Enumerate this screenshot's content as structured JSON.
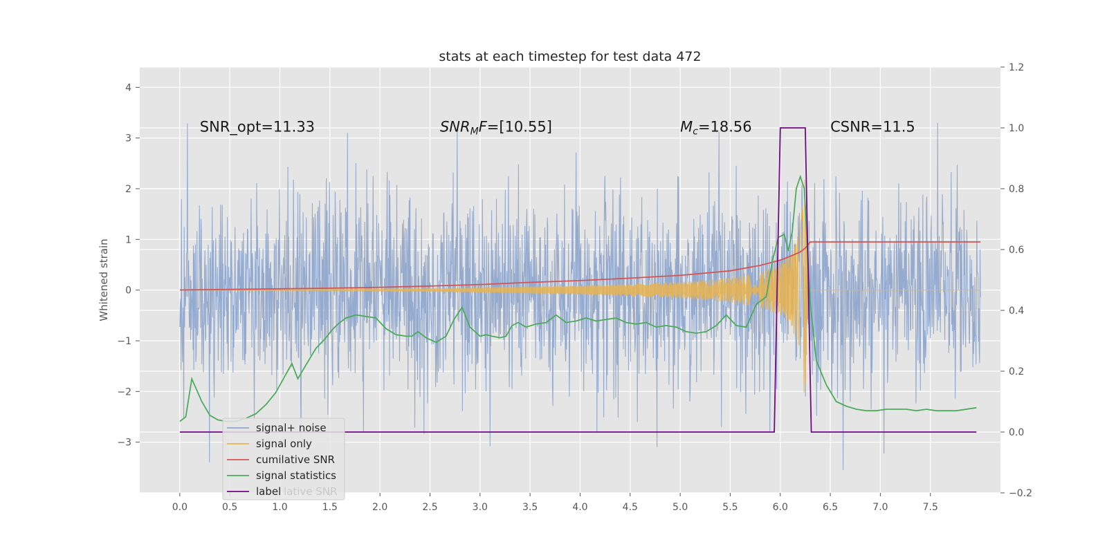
{
  "chart_data": {
    "type": "line",
    "title": "stats at each timestep for test data 472",
    "ylabel": "Whitened strain",
    "xlabel": "",
    "xlim": [
      -0.4,
      8.2
    ],
    "ylim": [
      -4,
      4.4
    ],
    "y2lim": [
      -0.2,
      1.2
    ],
    "grid": true,
    "legend_position": "lower-left",
    "x_ticks": [
      "0.0",
      "0.5",
      "1.0",
      "1.5",
      "2.0",
      "2.5",
      "3.0",
      "3.5",
      "4.0",
      "4.5",
      "5.0",
      "5.5",
      "6.0",
      "6.5",
      "7.0",
      "7.5"
    ],
    "x_tick_values": [
      0,
      0.5,
      1,
      1.5,
      2,
      2.5,
      3,
      3.5,
      4,
      4.5,
      5,
      5.5,
      6,
      6.5,
      7,
      7.5
    ],
    "y_ticks": [
      "4",
      "3",
      "2",
      "1",
      "0",
      "−1",
      "−2",
      "−3"
    ],
    "y_tick_values": [
      4,
      3,
      2,
      1,
      0,
      -1,
      -2,
      -3
    ],
    "y2_ticks": [
      "1.2",
      "1.0",
      "0.8",
      "0.6",
      "0.4",
      "0.2",
      "0.0",
      "−0.2"
    ],
    "y2_tick_values": [
      1.2,
      1.0,
      0.8,
      0.6,
      0.4,
      0.2,
      0.0,
      -0.2
    ],
    "annotations": [
      {
        "text": "SNR_opt=11.33",
        "x": 0.2,
        "y": 3.22
      },
      {
        "text": "SNR_MF=[10.55]",
        "x": 2.6,
        "y": 3.22
      },
      {
        "text": "M_c=18.56",
        "x": 5.0,
        "y": 3.22
      },
      {
        "text": "CSNR=11.5",
        "x": 6.5,
        "y": 3.22
      }
    ],
    "series": [
      {
        "name": "signal+ noise",
        "axis": "left",
        "color": "#8fa6cc",
        "description": "dense noisy strain trace spanning roughly -3.6 to 4.0 over x 0 to 8",
        "x_range": [
          0,
          8
        ],
        "approx_envelope": [
          -3.6,
          4.0
        ]
      },
      {
        "name": "signal only",
        "axis": "left",
        "color": "#e8b450",
        "description": "chirp waveform growing in amplitude, peaking near x=6.25 then dropping to zero",
        "peak_x": 6.25,
        "envelope": [
          [
            2.2,
            0.02
          ],
          [
            3,
            0.05
          ],
          [
            3.5,
            0.07
          ],
          [
            4,
            0.09
          ],
          [
            4.5,
            0.12
          ],
          [
            5,
            0.16
          ],
          [
            5.5,
            0.24
          ],
          [
            5.8,
            0.35
          ],
          [
            6,
            0.5
          ],
          [
            6.1,
            0.7
          ],
          [
            6.2,
            1.2
          ],
          [
            6.25,
            2.3
          ],
          [
            6.28,
            0
          ],
          [
            8,
            0
          ]
        ]
      },
      {
        "name": "cumilative SNR",
        "axis": "right",
        "color": "#d35454",
        "x": [
          0,
          0.5,
          1,
          1.5,
          2,
          2.5,
          3,
          3.5,
          4,
          4.5,
          5,
          5.5,
          5.8,
          6.0,
          6.1,
          6.2,
          6.25,
          6.3,
          7,
          8
        ],
        "y": [
          0.467,
          0.469,
          0.471,
          0.473,
          0.476,
          0.48,
          0.485,
          0.492,
          0.498,
          0.506,
          0.515,
          0.53,
          0.548,
          0.565,
          0.578,
          0.592,
          0.605,
          0.625,
          0.625,
          0.625
        ]
      },
      {
        "name": "signal statistics",
        "axis": "right",
        "color": "#4daa5c",
        "x": [
          0,
          0.06,
          0.12,
          0.16,
          0.22,
          0.3,
          0.38,
          0.46,
          0.56,
          0.66,
          0.76,
          0.86,
          0.96,
          1.06,
          1.12,
          1.18,
          1.26,
          1.36,
          1.46,
          1.52,
          1.58,
          1.66,
          1.76,
          1.86,
          1.96,
          2.06,
          2.16,
          2.26,
          2.32,
          2.38,
          2.46,
          2.56,
          2.66,
          2.74,
          2.82,
          2.9,
          3.0,
          3.06,
          3.12,
          3.2,
          3.26,
          3.32,
          3.38,
          3.46,
          3.56,
          3.66,
          3.76,
          3.86,
          3.96,
          4.06,
          4.16,
          4.26,
          4.36,
          4.46,
          4.56,
          4.66,
          4.76,
          4.86,
          4.96,
          5.06,
          5.16,
          5.26,
          5.36,
          5.46,
          5.56,
          5.66,
          5.76,
          5.86,
          5.92,
          5.98,
          6.04,
          6.08,
          6.12,
          6.16,
          6.2,
          6.24,
          6.3,
          6.36,
          6.46,
          6.56,
          6.66,
          6.76,
          6.86,
          6.96,
          7.06,
          7.16,
          7.26,
          7.36,
          7.46,
          7.56,
          7.66,
          7.76,
          7.86,
          7.96
        ],
        "y": [
          0.035,
          0.05,
          0.175,
          0.145,
          0.1,
          0.055,
          0.04,
          0.035,
          0.035,
          0.045,
          0.06,
          0.09,
          0.13,
          0.19,
          0.225,
          0.175,
          0.22,
          0.275,
          0.31,
          0.335,
          0.355,
          0.375,
          0.385,
          0.38,
          0.375,
          0.34,
          0.32,
          0.315,
          0.315,
          0.33,
          0.31,
          0.295,
          0.315,
          0.37,
          0.41,
          0.345,
          0.315,
          0.32,
          0.315,
          0.31,
          0.315,
          0.35,
          0.36,
          0.345,
          0.355,
          0.36,
          0.385,
          0.36,
          0.365,
          0.375,
          0.365,
          0.37,
          0.375,
          0.36,
          0.355,
          0.36,
          0.345,
          0.35,
          0.345,
          0.33,
          0.325,
          0.33,
          0.35,
          0.385,
          0.35,
          0.345,
          0.42,
          0.445,
          0.56,
          0.64,
          0.65,
          0.595,
          0.66,
          0.8,
          0.84,
          0.8,
          0.42,
          0.235,
          0.155,
          0.1,
          0.085,
          0.075,
          0.07,
          0.07,
          0.075,
          0.075,
          0.075,
          0.07,
          0.075,
          0.07,
          0.07,
          0.07,
          0.075,
          0.08
        ]
      },
      {
        "name": "label",
        "axis": "right",
        "color": "#6e0a82",
        "x": [
          0,
          5.94,
          6.0,
          6.25,
          6.31,
          7.96
        ],
        "y": [
          0,
          0,
          1,
          1,
          0,
          0
        ]
      }
    ],
    "legend_entries": [
      "signal+ noise",
      "signal only",
      "cumilative SNR",
      "signal statistics",
      "label"
    ],
    "legend_ghost_text": "lative SNR"
  }
}
